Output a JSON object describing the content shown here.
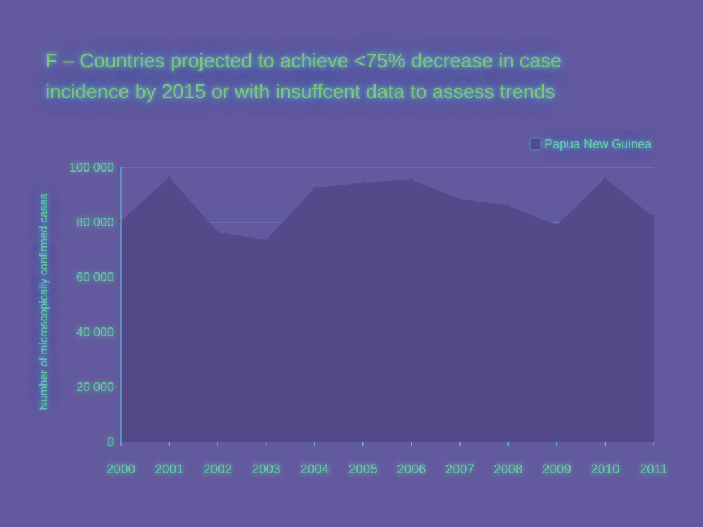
{
  "chart_data": {
    "type": "area",
    "title_lines": [
      "F – Countries projected to achieve <75% decrease in case",
      "incidence by 2015 or with insuffcent data to assess trends"
    ],
    "ylabel": "Number of microscopically confirmed cases",
    "xlabel": "",
    "x": [
      "2000",
      "2001",
      "2002",
      "2003",
      "2004",
      "2005",
      "2006",
      "2007",
      "2008",
      "2009",
      "2010",
      "2011"
    ],
    "series": [
      {
        "name": "Papua New Guinea",
        "values": [
          80500,
          96500,
          76500,
          73500,
          92500,
          94500,
          95500,
          88500,
          86000,
          79000,
          96000,
          82000
        ],
        "color": "#544a8a"
      }
    ],
    "ylim": [
      0,
      100000
    ],
    "yticks": [
      {
        "value": 0,
        "label": "0"
      },
      {
        "value": 20000,
        "label": "20 000"
      },
      {
        "value": 40000,
        "label": "40 000"
      },
      {
        "value": 60000,
        "label": "60 000"
      },
      {
        "value": 80000,
        "label": "80 000"
      },
      {
        "value": 100000,
        "label": "100 000"
      }
    ],
    "grid": true,
    "legend": "top-right",
    "colors": {
      "background": "#63599e",
      "area": "#544a8a",
      "gridline": "#6f7fc9",
      "text": "#62c9a4"
    }
  }
}
